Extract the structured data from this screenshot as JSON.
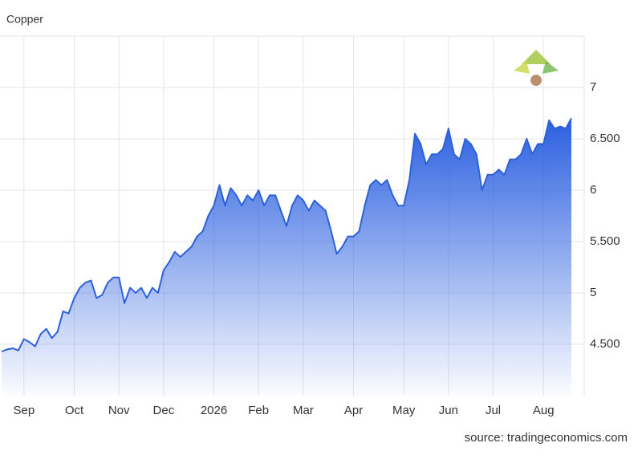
{
  "chart_data": {
    "type": "area",
    "title": "Copper",
    "source": "source: tradingeconomics.com",
    "categories": [
      null,
      null,
      null,
      null,
      "Sep",
      null,
      null,
      null,
      null,
      null,
      null,
      null,
      null,
      "Oct",
      null,
      null,
      null,
      null,
      null,
      null,
      null,
      "Nov",
      null,
      null,
      null,
      null,
      null,
      null,
      null,
      "Dec",
      null,
      null,
      null,
      null,
      null,
      null,
      null,
      null,
      "2026",
      null,
      null,
      null,
      null,
      null,
      null,
      null,
      "Feb",
      null,
      null,
      null,
      null,
      null,
      null,
      null,
      "Mar",
      null,
      null,
      null,
      null,
      null,
      null,
      null,
      null,
      "Apr",
      null,
      null,
      null,
      null,
      null,
      null,
      null,
      null,
      "May",
      null,
      null,
      null,
      null,
      null,
      null,
      null,
      "Jun",
      null,
      null,
      null,
      null,
      null,
      null,
      null,
      "Jul",
      null,
      null,
      null,
      null,
      null,
      null,
      null,
      null,
      "Aug",
      null,
      null,
      null,
      null,
      null
    ],
    "values": [
      4.43,
      4.45,
      4.46,
      4.44,
      4.55,
      4.52,
      4.48,
      4.6,
      4.65,
      4.56,
      4.62,
      4.82,
      4.8,
      4.95,
      5.05,
      5.1,
      5.12,
      4.95,
      4.98,
      5.1,
      5.15,
      5.15,
      4.9,
      5.05,
      5.0,
      5.05,
      4.95,
      5.05,
      5.0,
      5.22,
      5.3,
      5.4,
      5.35,
      5.4,
      5.45,
      5.55,
      5.6,
      5.75,
      5.85,
      6.05,
      5.85,
      6.02,
      5.95,
      5.85,
      5.95,
      5.9,
      6.0,
      5.85,
      5.95,
      5.95,
      5.8,
      5.65,
      5.85,
      5.95,
      5.9,
      5.8,
      5.9,
      5.85,
      5.8,
      5.6,
      5.38,
      5.45,
      5.55,
      5.55,
      5.6,
      5.85,
      6.05,
      6.1,
      6.05,
      6.1,
      5.95,
      5.85,
      5.85,
      6.1,
      6.55,
      6.45,
      6.25,
      6.35,
      6.35,
      6.4,
      6.6,
      6.35,
      6.3,
      6.5,
      6.45,
      6.35,
      6.0,
      6.15,
      6.15,
      6.2,
      6.15,
      6.3,
      6.3,
      6.35,
      6.5,
      6.35,
      6.45,
      6.45,
      6.68,
      6.6,
      6.62,
      6.6,
      6.7
    ],
    "color": "#2d62d6",
    "ylim": [
      4,
      7.5
    ],
    "yticks": [
      {
        "value": 4.5,
        "label": "4.500"
      },
      5,
      {
        "value": 5.5,
        "label": "5.500"
      },
      6,
      {
        "value": 6.5,
        "label": "6.500"
      },
      7
    ],
    "grid": true
  }
}
